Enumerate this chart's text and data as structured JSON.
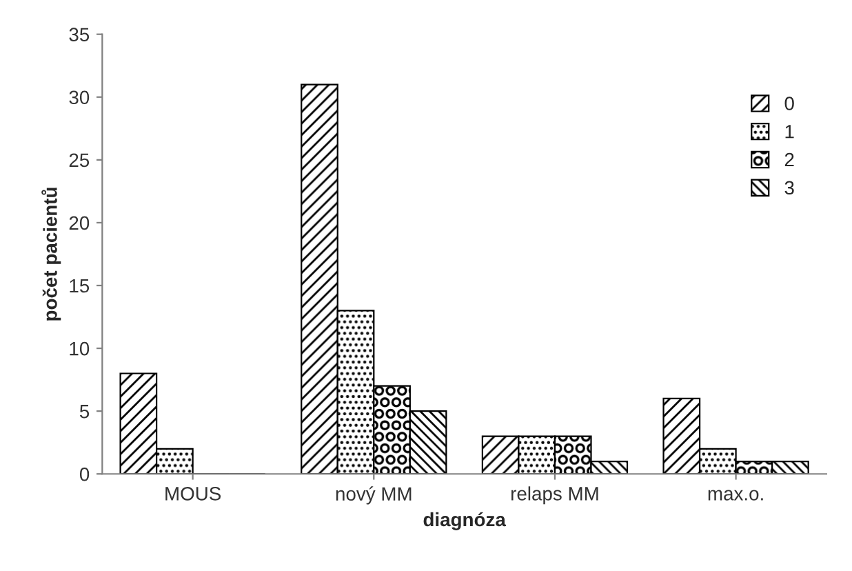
{
  "chart_data": {
    "type": "bar",
    "xlabel": "diagnóza",
    "ylabel": "počet pacientů",
    "categories": [
      "MOUS",
      "nový MM",
      "relaps MM",
      "max.o."
    ],
    "series": [
      {
        "name": "0",
        "color": "#000000",
        "values": [
          8,
          31,
          3,
          6
        ]
      },
      {
        "name": "1",
        "color": "#000000",
        "values": [
          2,
          13,
          3,
          2
        ]
      },
      {
        "name": "2",
        "color": "#000000",
        "values": [
          0,
          7,
          3,
          1
        ]
      },
      {
        "name": "3",
        "color": "#000000",
        "values": [
          0,
          5,
          1,
          1
        ]
      }
    ],
    "ylim": [
      0,
      35
    ],
    "yticks": [
      0,
      5,
      10,
      15,
      20,
      25,
      30,
      35
    ],
    "grid": false,
    "legend": "top right"
  }
}
